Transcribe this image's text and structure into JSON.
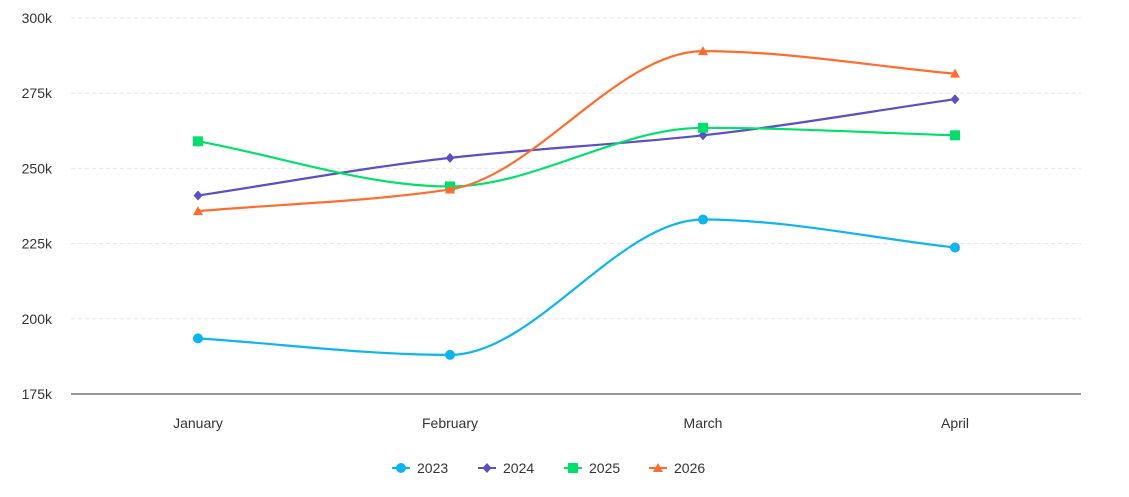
{
  "chart_data": {
    "type": "line",
    "title": "",
    "xlabel": "",
    "ylabel": "",
    "categories": [
      "January",
      "February",
      "March",
      "April"
    ],
    "ylim": [
      175000,
      300000
    ],
    "yticks": [
      175000,
      200000,
      225000,
      250000,
      275000,
      300000
    ],
    "ytick_labels": [
      "175k",
      "200k",
      "225k",
      "250k",
      "275k",
      "300k"
    ],
    "grid": true,
    "legend_position": "bottom",
    "series": [
      {
        "name": "2023",
        "color": "#0db4f0",
        "marker": "circle",
        "values": [
          193500,
          188000,
          233000,
          223700
        ]
      },
      {
        "name": "2024",
        "color": "#5b4fc4",
        "marker": "diamond",
        "values": [
          241000,
          253500,
          261000,
          273000
        ]
      },
      {
        "name": "2025",
        "color": "#00e06b",
        "marker": "square",
        "values": [
          259000,
          244000,
          263500,
          261000
        ]
      },
      {
        "name": "2026",
        "color": "#ff6d2e",
        "marker": "triangle",
        "values": [
          235800,
          243000,
          289000,
          281500
        ]
      }
    ]
  }
}
